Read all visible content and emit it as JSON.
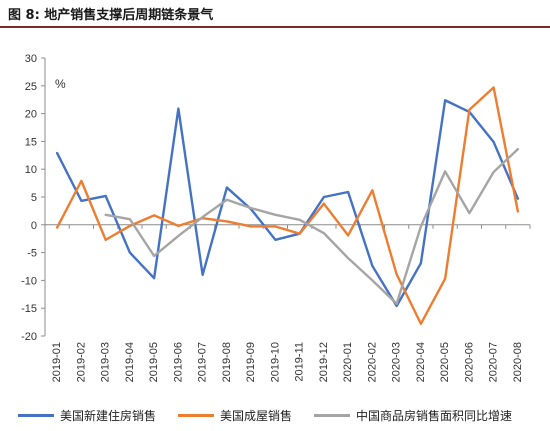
{
  "figure": {
    "title": "图 8:  地产销售支撑后周期链条景气"
  },
  "chart_data": {
    "type": "line",
    "title": "",
    "xlabel": "",
    "ylabel": "",
    "unit": "%",
    "ylim": [
      -20,
      30
    ],
    "yticks": [
      -20,
      -15,
      -10,
      -5,
      0,
      5,
      10,
      15,
      20,
      25,
      30
    ],
    "grid": false,
    "legend_position": "bottom",
    "categories": [
      "2019-01",
      "2019-02",
      "2019-03",
      "2019-04",
      "2019-05",
      "2019-06",
      "2019-07",
      "2019-08",
      "2019-09",
      "2019-10",
      "2019-11",
      "2019-12",
      "2020-01",
      "2020-02",
      "2020-03",
      "2020-04",
      "2020-05",
      "2020-06",
      "2020-07",
      "2020-08"
    ],
    "series": [
      {
        "name": "美国新建住房销售",
        "color": "#4472C4",
        "values": [
          12.9,
          4.3,
          5.2,
          -5.0,
          -9.6,
          20.9,
          -9.0,
          6.7,
          2.8,
          -2.7,
          -1.6,
          5.0,
          5.9,
          -7.4,
          -14.6,
          -6.9,
          22.4,
          20.3,
          14.9,
          4.7
        ]
      },
      {
        "name": "美国成屋销售",
        "color": "#ED7D31",
        "values": [
          -0.5,
          7.9,
          -2.7,
          -0.2,
          1.7,
          -0.2,
          1.2,
          0.6,
          -0.3,
          -0.3,
          -1.6,
          3.8,
          -1.9,
          6.2,
          -8.9,
          -17.8,
          -9.7,
          20.7,
          24.7,
          2.4
        ]
      },
      {
        "name": "中国商品房销售面积同比增速",
        "color": "#A5A5A5",
        "values": [
          null,
          null,
          1.8,
          1.0,
          -5.6,
          -2.0,
          1.4,
          4.5,
          3.0,
          1.8,
          0.9,
          -1.5,
          -6.0,
          -10.0,
          -14.2,
          -0.3,
          9.6,
          2.1,
          9.5,
          13.6
        ]
      }
    ]
  }
}
